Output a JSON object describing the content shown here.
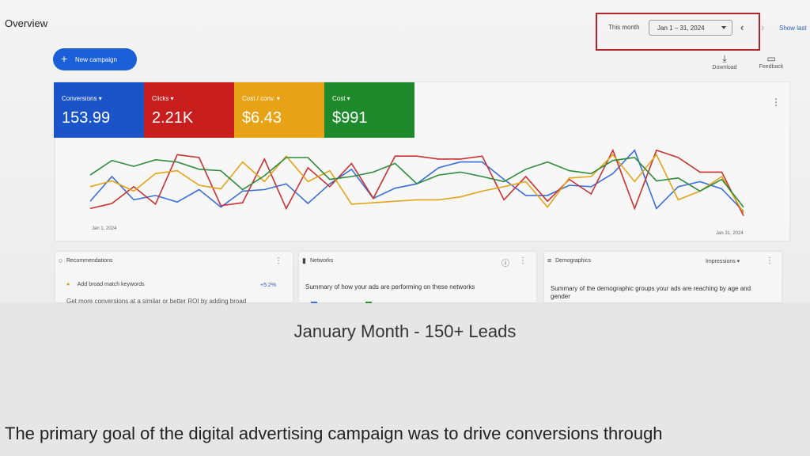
{
  "header": {
    "title": "Overview",
    "date_range_label": "This month",
    "date_range_value": "Jan 1 – 31, 2024",
    "show_last": "Show last"
  },
  "toolbar": {
    "new_campaign": "New campaign",
    "download": "Download",
    "feedback": "Feedback"
  },
  "metrics": [
    {
      "label": "Conversions ▾",
      "value": "153.99",
      "color": "#1a54c8"
    },
    {
      "label": "Clicks ▾",
      "value": "2.21K",
      "color": "#c81e1e"
    },
    {
      "label": "Cost / conv. ▾",
      "value": "$6.43",
      "color": "#e8a215"
    },
    {
      "label": "Cost ▾",
      "value": "$991",
      "color": "#1f8a2b"
    }
  ],
  "chart_data": {
    "type": "line",
    "x_start_label": "Jan 1, 2024",
    "x_end_label": "Jan 31, 2024",
    "series": [
      {
        "color": "#3b6fd8",
        "values": [
          0.28,
          0.62,
          0.3,
          0.36,
          0.27,
          0.44,
          0.2,
          0.42,
          0.44,
          0.52,
          0.25,
          0.52,
          0.72,
          0.32,
          0.46,
          0.52,
          0.74,
          0.82,
          0.82,
          0.58,
          0.36,
          0.36,
          0.5,
          0.48,
          0.66,
          0.98,
          0.18,
          0.48,
          0.55,
          0.45,
          0.14
        ]
      },
      {
        "color": "#c83232",
        "values": [
          0.18,
          0.25,
          0.48,
          0.24,
          0.92,
          0.88,
          0.22,
          0.26,
          0.86,
          0.18,
          0.74,
          0.48,
          0.8,
          0.32,
          0.9,
          0.9,
          0.86,
          0.86,
          0.9,
          0.3,
          0.62,
          0.28,
          0.58,
          0.38,
          0.98,
          0.18,
          0.98,
          0.88,
          0.68,
          0.68,
          0.08
        ]
      },
      {
        "color": "#e2a417",
        "values": [
          0.48,
          0.56,
          0.42,
          0.66,
          0.7,
          0.5,
          0.45,
          0.82,
          0.55,
          0.9,
          0.55,
          0.7,
          0.24,
          0.26,
          0.28,
          0.3,
          0.3,
          0.34,
          0.42,
          0.48,
          0.55,
          0.2,
          0.6,
          0.62,
          0.92,
          0.55,
          0.92,
          0.3,
          0.42,
          0.62,
          0.12
        ]
      },
      {
        "color": "#2e8b3c",
        "values": [
          0.64,
          0.84,
          0.76,
          0.85,
          0.82,
          0.72,
          0.7,
          0.44,
          0.63,
          0.88,
          0.88,
          0.58,
          0.62,
          0.68,
          0.8,
          0.52,
          0.64,
          0.68,
          0.62,
          0.55,
          0.72,
          0.82,
          0.7,
          0.66,
          0.84,
          0.88,
          0.56,
          0.6,
          0.42,
          0.58,
          0.2
        ]
      }
    ]
  },
  "panels": {
    "recommendations": {
      "title": "Recommendations",
      "item": "Add broad match keywords",
      "badge": "+5.2%",
      "subtext": "Get more conversions at a similar or better ROI by adding broad"
    },
    "networks": {
      "title": "Networks",
      "text": "Summary of how your ads are performing on these networks"
    },
    "demographics": {
      "title": "Demographics",
      "metric": "Impressions ▾",
      "text": "Summary of the demographic groups your ads are reaching by age and gender"
    }
  },
  "caption": "January Month - 150+ Leads",
  "body_text": "The primary goal of the digital advertising campaign was to drive conversions through"
}
